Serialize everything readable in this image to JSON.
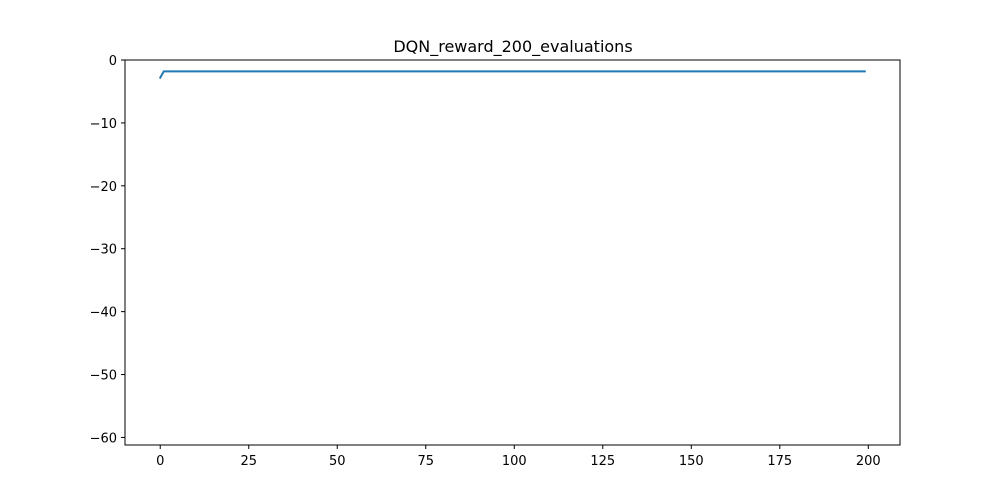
{
  "chart_data": {
    "type": "line",
    "title": "DQN_reward_200_evaluations",
    "xlabel": "",
    "ylabel": "",
    "xlim": [
      -9.95,
      208.95
    ],
    "ylim": [
      -61.2,
      0
    ],
    "x_ticks": [
      0,
      25,
      50,
      75,
      100,
      125,
      150,
      175,
      200
    ],
    "x_tick_labels": [
      "0",
      "25",
      "50",
      "75",
      "100",
      "125",
      "150",
      "175",
      "200"
    ],
    "y_ticks": [
      0,
      -10,
      -20,
      -30,
      -40,
      -50,
      -60
    ],
    "y_tick_labels": [
      "0",
      "−10",
      "−20",
      "−30",
      "−40",
      "−50",
      "−60"
    ],
    "grid": false,
    "series": [
      {
        "color": "#1f77b4",
        "x": [
          0,
          1,
          199
        ],
        "y": [
          -2.8,
          -1.8,
          -1.8
        ]
      }
    ]
  }
}
